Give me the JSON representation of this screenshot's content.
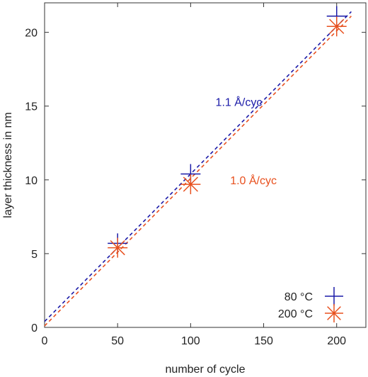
{
  "chart_data": {
    "type": "scatter",
    "xlabel": "number of cycle",
    "ylabel": "layer thickness in nm",
    "xlim": [
      0,
      220
    ],
    "ylim": [
      0,
      22
    ],
    "xticks": [
      0,
      50,
      100,
      150,
      200
    ],
    "yticks": [
      0,
      5,
      10,
      15,
      20
    ],
    "grid": false,
    "legend_position": "bottom-right",
    "series": [
      {
        "name": "80 °C",
        "color": "#1a1aa8",
        "marker": "plus",
        "x": [
          50,
          100,
          200
        ],
        "y": [
          5.7,
          10.4,
          21.1
        ]
      },
      {
        "name": "200 °C",
        "color": "#e8501e",
        "marker": "asterisk",
        "x": [
          50,
          100,
          200
        ],
        "y": [
          5.4,
          9.7,
          20.4
        ]
      }
    ],
    "fit_lines": [
      {
        "label": "1.1 Å/cyc",
        "color": "#1a1aa8",
        "slope": 0.1,
        "intercept": 0.4,
        "x_range": [
          0,
          210
        ],
        "label_at": {
          "x": 133,
          "y": 15
        }
      },
      {
        "label": "1.0 Å/cyc",
        "color": "#e8501e",
        "slope": 0.1,
        "intercept": 0.1,
        "x_range": [
          0,
          210
        ],
        "label_at": {
          "x": 143,
          "y": 9.7
        }
      }
    ]
  }
}
